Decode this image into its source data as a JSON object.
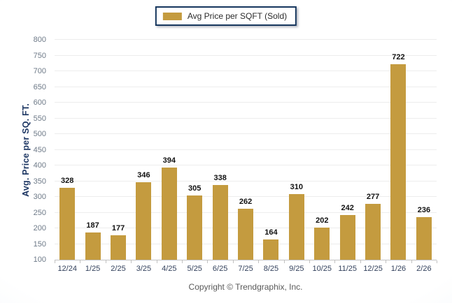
{
  "legend": {
    "label": "Avg Price per SQFT (Sold)",
    "swatch_color": "#C49B3F"
  },
  "footer": {
    "copyright": "Copyright © Trendgraphix, Inc."
  },
  "colors": {
    "bar": "#C49B3F",
    "legend_border": "#17375E",
    "y_axis_title": "#1F3864",
    "x_tick_labels": "#33415C",
    "y_tick_labels": "#6e7a88",
    "gridline": "#ededed",
    "baseline": "#c2c2c2",
    "value_labels": "#111111",
    "copyright_text": "#595959"
  },
  "chart_data": {
    "type": "bar",
    "title": "",
    "xlabel": "",
    "ylabel": "Avg. Price per SQ. FT.",
    "categories": [
      "12/24",
      "1/25",
      "2/25",
      "3/25",
      "4/25",
      "5/25",
      "6/25",
      "7/25",
      "8/25",
      "9/25",
      "10/25",
      "11/25",
      "12/25",
      "1/26",
      "2/26"
    ],
    "values": [
      328,
      187,
      177,
      346,
      394,
      305,
      338,
      262,
      164,
      310,
      202,
      242,
      277,
      722,
      236
    ],
    "series": [
      {
        "name": "Avg Price per SQFT (Sold)",
        "values": [
          328,
          187,
          177,
          346,
          394,
          305,
          338,
          262,
          164,
          310,
          202,
          242,
          277,
          722,
          236
        ]
      }
    ],
    "ylim": [
      100,
      800
    ],
    "ytick_step": 50,
    "grid": "horizontal",
    "legend_position": "top-center",
    "bar_color": "#C49B3F",
    "value_labels": true
  }
}
